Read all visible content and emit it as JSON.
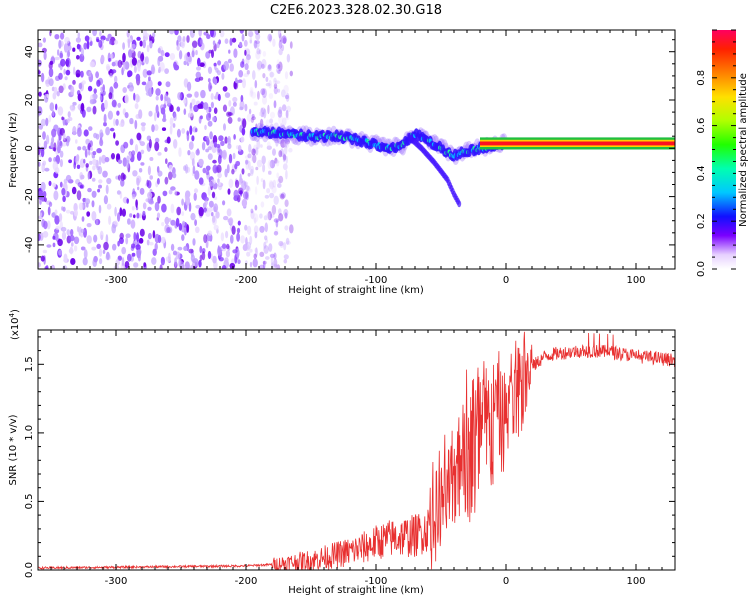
{
  "page_title": "C2E6.2023.328.02.30.G18",
  "chart_data": [
    {
      "type": "heatmap",
      "title": "C2E6.2023.328.02.30.G18",
      "xlabel": "Height of straight line (km)",
      "ylabel": "Frequency (Hz)",
      "xlim": [
        -360,
        130
      ],
      "ylim": [
        -50,
        49
      ],
      "xticks": [
        -300,
        -200,
        -100,
        0,
        100
      ],
      "xtick_labels": [
        "-300",
        "-200",
        "-100",
        "0",
        "100"
      ],
      "yticks": [
        -40,
        -20,
        0,
        20,
        40
      ],
      "ytick_labels": [
        "-40",
        "-20",
        "0",
        "20",
        "40"
      ],
      "colorbar": {
        "label": "Normalized spectral amplitude",
        "range": [
          0,
          1
        ],
        "ticks": [
          0.0,
          0.2,
          0.4,
          0.6,
          0.8
        ],
        "tick_labels": [
          "0.0",
          "0.2",
          "0.4",
          "0.6",
          "0.8"
        ]
      },
      "features": {
        "noise_region_x": [
          -360,
          -175
        ],
        "signal_start_x": -195,
        "carrier_frequency_hz": 2,
        "trace": {
          "x": [
            -195,
            -170,
            -150,
            -130,
            -110,
            -90,
            -80,
            -70,
            -60,
            -50,
            -40,
            -30,
            -20,
            -10,
            0,
            20,
            50,
            80,
            100,
            130
          ],
          "y": [
            7,
            6,
            5,
            5,
            3,
            0,
            1,
            6,
            3,
            0,
            -3,
            -1,
            0,
            1,
            2,
            2,
            2,
            2,
            2,
            2
          ]
        },
        "branch": {
          "x": [
            -75,
            -65,
            -55,
            -45,
            -40,
            -35
          ],
          "y": [
            5,
            0,
            -6,
            -13,
            -19,
            -24
          ]
        }
      }
    },
    {
      "type": "line",
      "title": "",
      "xlabel": "Height of straight line (km)",
      "ylabel": "SNR (10 * v/v)",
      "exponent_label": "(x10",
      "exponent_power": "4",
      "exponent_close": ")",
      "xlim": [
        -360,
        130
      ],
      "ylim": [
        0,
        17500
      ],
      "xticks": [
        -300,
        -200,
        -100,
        0,
        100
      ],
      "xtick_labels": [
        "-300",
        "-200",
        "-100",
        "0",
        "100"
      ],
      "yticks": [
        0,
        5000,
        10000,
        15000
      ],
      "ytick_labels": [
        "0.0",
        "0.5",
        "1.0",
        "1.5"
      ],
      "color": "#e83030",
      "series": [
        {
          "name": "SNR",
          "x": [
            -360,
            -300,
            -250,
            -200,
            -180,
            -150,
            -130,
            -110,
            -100,
            -90,
            -80,
            -70,
            -60,
            -50,
            -40,
            -30,
            -20,
            -10,
            0,
            10,
            20,
            30,
            40,
            60,
            80,
            100,
            130
          ],
          "values": [
            150,
            200,
            250,
            300,
            400,
            700,
            1100,
            1600,
            2000,
            2300,
            2400,
            2500,
            3000,
            4500,
            6500,
            8500,
            9500,
            10500,
            11000,
            13000,
            14800,
            15600,
            15800,
            16000,
            15900,
            15600,
            15300
          ]
        }
      ]
    }
  ]
}
